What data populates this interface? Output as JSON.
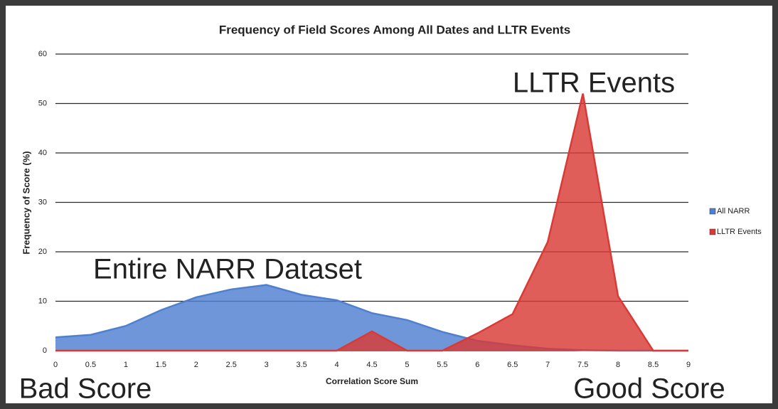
{
  "chart_data": {
    "type": "area",
    "title": "Frequency of Field Scores Among All Dates and LLTR Events",
    "x_label": "Correlation Score Sum",
    "y_label": "Frequency of Score (%)",
    "categories": [
      "0",
      "0.5",
      "1",
      "1.5",
      "2",
      "2.5",
      "3",
      "3.5",
      "4",
      "4.5",
      "5",
      "5.5",
      "6",
      "6.5",
      "7",
      "7.5",
      "8",
      "8.5",
      "9"
    ],
    "series": [
      {
        "name": "All NARR",
        "color": "#4f7fcf",
        "values": [
          2.7,
          3.2,
          5,
          8.2,
          10.8,
          12.4,
          13.3,
          11.3,
          10.2,
          7.6,
          6.2,
          3.8,
          2,
          1.1,
          0.4,
          0.1,
          0,
          0,
          0
        ]
      },
      {
        "name": "LLTR Events",
        "color": "#d93a36",
        "values": [
          0,
          0,
          0,
          0,
          0,
          0,
          0,
          0,
          0,
          3.9,
          0,
          0,
          3.5,
          7.4,
          22,
          52,
          11,
          0,
          0
        ]
      }
    ],
    "ylim": [
      0,
      60
    ],
    "yticks": [
      0,
      10,
      20,
      30,
      40,
      50,
      60
    ],
    "grid": true,
    "legend": "right",
    "annotations": [
      "LLTR Events",
      "Entire NARR Dataset",
      "Bad Score",
      "Good Score"
    ]
  }
}
